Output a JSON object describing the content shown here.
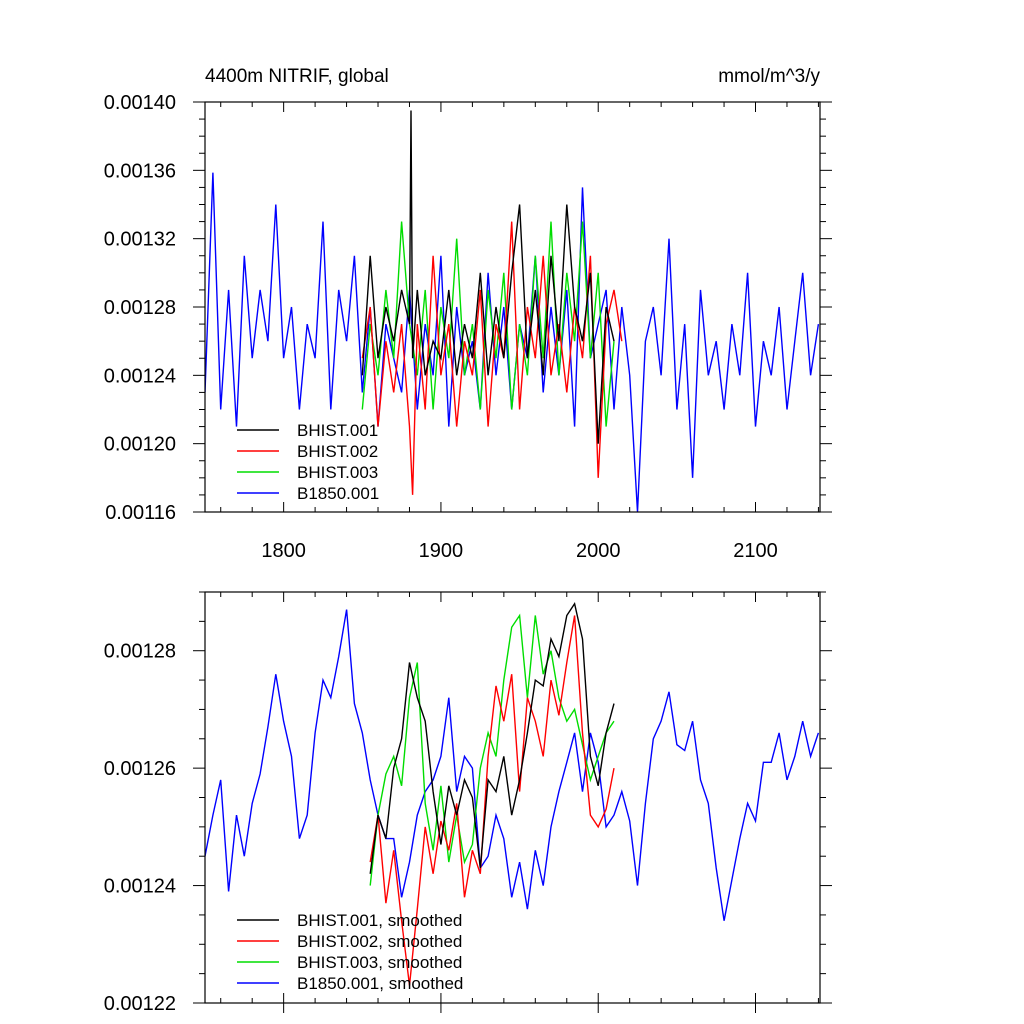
{
  "chart_data": [
    {
      "type": "line",
      "title": "4400m NITRIF, global",
      "units": "mmol/m^3/y",
      "xlim": [
        1750,
        2141
      ],
      "ylim": [
        0.00116,
        0.0014
      ],
      "xticks": [
        1800,
        1900,
        2000,
        2100
      ],
      "xtick_labels": [
        "1800",
        "1900",
        "2000",
        "2100"
      ],
      "yticks": [
        0.00116,
        0.0012,
        0.00124,
        0.00128,
        0.00132,
        0.00136,
        0.0014
      ],
      "ytick_labels": [
        "0.00116",
        "0.00120",
        "0.00124",
        "0.00128",
        "0.00132",
        "0.00136",
        "0.00140"
      ],
      "legend_position": "bottom-left",
      "series": [
        {
          "name": "BHIST.001",
          "color": "#000000",
          "x": [
            1850,
            1855,
            1860,
            1865,
            1870,
            1875,
            1880,
            1881,
            1882,
            1885,
            1890,
            1895,
            1900,
            1905,
            1910,
            1915,
            1920,
            1925,
            1930,
            1935,
            1940,
            1945,
            1950,
            1955,
            1960,
            1965,
            1970,
            1975,
            1980,
            1985,
            1990,
            1995,
            2000,
            2005,
            2010
          ],
          "values": [
            0.00124,
            0.00131,
            0.00125,
            0.00128,
            0.00126,
            0.00129,
            0.00127,
            0.001395,
            0.00125,
            0.00129,
            0.00124,
            0.00126,
            0.00125,
            0.00129,
            0.00124,
            0.00127,
            0.00125,
            0.0013,
            0.00124,
            0.00128,
            0.00125,
            0.0013,
            0.00134,
            0.00125,
            0.00129,
            0.00124,
            0.00131,
            0.00126,
            0.00134,
            0.00128,
            0.00126,
            0.0013,
            0.0012,
            0.00128,
            0.00126
          ]
        },
        {
          "name": "BHIST.002",
          "color": "#ff0000",
          "x": [
            1850,
            1855,
            1860,
            1865,
            1870,
            1875,
            1880,
            1882,
            1885,
            1890,
            1895,
            1900,
            1905,
            1910,
            1915,
            1920,
            1925,
            1930,
            1935,
            1940,
            1945,
            1950,
            1955,
            1960,
            1965,
            1970,
            1975,
            1980,
            1985,
            1990,
            1995,
            2000,
            2005,
            2010,
            2015
          ],
          "values": [
            0.00125,
            0.00128,
            0.00121,
            0.00126,
            0.00123,
            0.00127,
            0.00121,
            0.00117,
            0.00127,
            0.00122,
            0.00131,
            0.00124,
            0.00127,
            0.00121,
            0.00126,
            0.00124,
            0.00129,
            0.00121,
            0.00127,
            0.00125,
            0.00133,
            0.00122,
            0.00128,
            0.00125,
            0.00131,
            0.00124,
            0.00127,
            0.00123,
            0.00128,
            0.00125,
            0.00131,
            0.00118,
            0.00127,
            0.00129,
            0.00126
          ]
        },
        {
          "name": "BHIST.003",
          "color": "#00dd00",
          "x": [
            1850,
            1855,
            1860,
            1865,
            1870,
            1875,
            1880,
            1885,
            1890,
            1895,
            1900,
            1905,
            1910,
            1915,
            1920,
            1925,
            1930,
            1935,
            1940,
            1945,
            1950,
            1955,
            1960,
            1965,
            1970,
            1975,
            1980,
            1985,
            1990,
            1995,
            2000,
            2005,
            2010
          ],
          "values": [
            0.00122,
            0.00127,
            0.00124,
            0.00129,
            0.00125,
            0.00133,
            0.00127,
            0.00124,
            0.00129,
            0.00122,
            0.00128,
            0.00125,
            0.00132,
            0.00124,
            0.00127,
            0.00122,
            0.00129,
            0.00125,
            0.0013,
            0.00122,
            0.00127,
            0.00124,
            0.00131,
            0.00125,
            0.00133,
            0.00124,
            0.0013,
            0.00126,
            0.00133,
            0.00125,
            0.0013,
            0.00121,
            0.00126
          ]
        },
        {
          "name": "B1850.001",
          "color": "#0000ff",
          "x": [
            1750,
            1755,
            1760,
            1765,
            1770,
            1775,
            1780,
            1785,
            1790,
            1795,
            1800,
            1805,
            1810,
            1815,
            1820,
            1825,
            1830,
            1835,
            1840,
            1845,
            1850,
            1855,
            1860,
            1865,
            1870,
            1875,
            1880,
            1885,
            1890,
            1895,
            1900,
            1905,
            1910,
            1915,
            1920,
            1925,
            1930,
            1935,
            1940,
            1945,
            1950,
            1955,
            1960,
            1965,
            1970,
            1975,
            1980,
            1985,
            1990,
            1995,
            2000,
            2005,
            2010,
            2015,
            2020,
            2025,
            2030,
            2035,
            2040,
            2045,
            2050,
            2055,
            2060,
            2065,
            2070,
            2075,
            2080,
            2085,
            2090,
            2095,
            2100,
            2105,
            2110,
            2115,
            2120,
            2125,
            2130,
            2135,
            2140
          ],
          "values": [
            0.00123,
            0.0013587,
            0.00122,
            0.00129,
            0.00121,
            0.00131,
            0.00125,
            0.00129,
            0.00126,
            0.00134,
            0.00125,
            0.00128,
            0.00122,
            0.00127,
            0.00125,
            0.00133,
            0.00122,
            0.00129,
            0.00126,
            0.00131,
            0.00123,
            0.00128,
            0.00121,
            0.00127,
            0.00125,
            0.00123,
            0.00129,
            0.00122,
            0.00127,
            0.00124,
            0.00131,
            0.00121,
            0.00128,
            0.00124,
            0.00126,
            0.00122,
            0.0013,
            0.00124,
            0.00128,
            0.00122,
            0.00127,
            0.00125,
            0.00131,
            0.00123,
            0.00128,
            0.00124,
            0.00129,
            0.00121,
            0.00135,
            0.00125,
            0.00127,
            0.00129,
            0.00122,
            0.00128,
            0.00124,
            0.00116,
            0.00126,
            0.00128,
            0.00124,
            0.00132,
            0.00122,
            0.00127,
            0.00118,
            0.00129,
            0.00124,
            0.00126,
            0.00122,
            0.00127,
            0.00124,
            0.0013,
            0.00121,
            0.00126,
            0.00124,
            0.00128,
            0.00122,
            0.00126,
            0.0013,
            0.00124,
            0.00127
          ]
        }
      ]
    },
    {
      "type": "line",
      "xlim": [
        1750,
        2141
      ],
      "ylim": [
        0.00122,
        0.00129
      ],
      "xticks": [
        1800,
        1900,
        2000,
        2100
      ],
      "xtick_labels": [],
      "yticks": [
        0.00122,
        0.00124,
        0.00126,
        0.00128
      ],
      "ytick_labels": [
        "0.00122",
        "0.00124",
        "0.00126",
        "0.00128"
      ],
      "legend_position": "bottom-left",
      "series": [
        {
          "name": "BHIST.001, smoothed",
          "color": "#000000",
          "x": [
            1855,
            1860,
            1865,
            1870,
            1875,
            1880,
            1885,
            1890,
            1895,
            1900,
            1905,
            1910,
            1915,
            1920,
            1925,
            1930,
            1935,
            1940,
            1945,
            1950,
            1955,
            1960,
            1965,
            1970,
            1975,
            1980,
            1985,
            1990,
            1995,
            2000,
            2005,
            2010
          ],
          "values": [
            0.001242,
            0.001252,
            0.001248,
            0.00126,
            0.001265,
            0.001278,
            0.001272,
            0.001268,
            0.001256,
            0.001247,
            0.001257,
            0.001252,
            0.001258,
            0.001255,
            0.001243,
            0.001258,
            0.001256,
            0.001262,
            0.001252,
            0.001258,
            0.001266,
            0.001275,
            0.001274,
            0.001282,
            0.001279,
            0.001286,
            0.001288,
            0.001282,
            0.001262,
            0.001257,
            0.001266,
            0.001271
          ]
        },
        {
          "name": "BHIST.002, smoothed",
          "color": "#ff0000",
          "x": [
            1855,
            1860,
            1865,
            1870,
            1875,
            1880,
            1885,
            1890,
            1895,
            1900,
            1905,
            1910,
            1915,
            1920,
            1925,
            1930,
            1935,
            1940,
            1945,
            1950,
            1955,
            1960,
            1965,
            1970,
            1975,
            1980,
            1985,
            1990,
            1995,
            2000,
            2005,
            2010
          ],
          "values": [
            0.001244,
            0.001252,
            0.001237,
            0.001246,
            0.001234,
            0.001223,
            0.001236,
            0.00125,
            0.001242,
            0.001251,
            0.001246,
            0.001254,
            0.001238,
            0.001246,
            0.001242,
            0.001262,
            0.001274,
            0.001268,
            0.001276,
            0.001256,
            0.001272,
            0.001268,
            0.001262,
            0.001275,
            0.001269,
            0.001278,
            0.001286,
            0.001266,
            0.001252,
            0.00125,
            0.001253,
            0.00126
          ]
        },
        {
          "name": "BHIST.003, smoothed",
          "color": "#00dd00",
          "x": [
            1855,
            1860,
            1865,
            1870,
            1875,
            1880,
            1885,
            1890,
            1895,
            1900,
            1905,
            1910,
            1915,
            1920,
            1925,
            1930,
            1935,
            1940,
            1945,
            1950,
            1955,
            1960,
            1965,
            1970,
            1975,
            1980,
            1985,
            1990,
            1995,
            2000,
            2005,
            2010
          ],
          "values": [
            0.00124,
            0.001252,
            0.001259,
            0.001262,
            0.001257,
            0.001272,
            0.001278,
            0.001254,
            0.001246,
            0.001257,
            0.001244,
            0.001252,
            0.001244,
            0.001247,
            0.00126,
            0.001266,
            0.001262,
            0.001275,
            0.001284,
            0.001286,
            0.001272,
            0.001286,
            0.001276,
            0.00128,
            0.001272,
            0.001268,
            0.00127,
            0.001264,
            0.001258,
            0.001262,
            0.001266,
            0.001268
          ]
        },
        {
          "name": "B1850.001, smoothed",
          "color": "#0000ff",
          "x": [
            1750,
            1755,
            1760,
            1765,
            1770,
            1775,
            1780,
            1785,
            1790,
            1795,
            1800,
            1805,
            1810,
            1815,
            1820,
            1825,
            1830,
            1835,
            1840,
            1845,
            1850,
            1855,
            1860,
            1865,
            1870,
            1875,
            1880,
            1885,
            1890,
            1895,
            1900,
            1905,
            1910,
            1915,
            1920,
            1925,
            1930,
            1935,
            1940,
            1945,
            1950,
            1955,
            1960,
            1965,
            1970,
            1975,
            1980,
            1985,
            1990,
            1995,
            2000,
            2005,
            2010,
            2015,
            2020,
            2025,
            2030,
            2035,
            2040,
            2045,
            2050,
            2055,
            2060,
            2065,
            2070,
            2075,
            2080,
            2085,
            2090,
            2095,
            2100,
            2105,
            2110,
            2115,
            2120,
            2125,
            2130,
            2135,
            2140
          ],
          "values": [
            0.001245,
            0.001252,
            0.001258,
            0.001239,
            0.001252,
            0.001245,
            0.001254,
            0.001259,
            0.001267,
            0.001276,
            0.001268,
            0.001262,
            0.001248,
            0.001252,
            0.001266,
            0.001275,
            0.001272,
            0.001279,
            0.001287,
            0.001271,
            0.001266,
            0.001258,
            0.001252,
            0.001248,
            0.001248,
            0.001238,
            0.001244,
            0.001252,
            0.001256,
            0.001258,
            0.001262,
            0.001272,
            0.001256,
            0.001262,
            0.00126,
            0.001243,
            0.001245,
            0.001252,
            0.001248,
            0.001238,
            0.001244,
            0.001236,
            0.001246,
            0.00124,
            0.00125,
            0.001256,
            0.001261,
            0.001266,
            0.001256,
            0.001266,
            0.001261,
            0.00125,
            0.001252,
            0.001256,
            0.001251,
            0.00124,
            0.001254,
            0.001265,
            0.001268,
            0.001273,
            0.001264,
            0.001263,
            0.001268,
            0.001258,
            0.001254,
            0.001243,
            0.001234,
            0.001241,
            0.001248,
            0.001254,
            0.001251,
            0.001261,
            0.001261,
            0.001266,
            0.001258,
            0.001262,
            0.001268,
            0.001262,
            0.001266
          ]
        }
      ]
    }
  ]
}
